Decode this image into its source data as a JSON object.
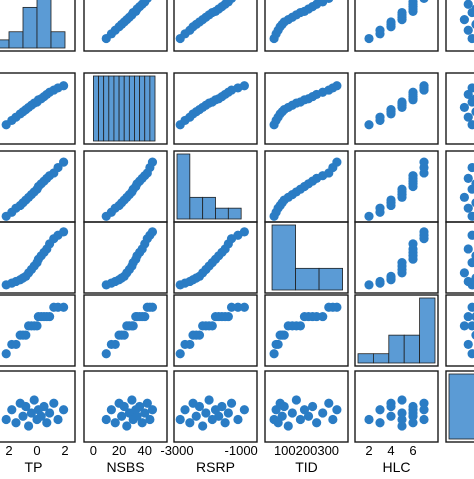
{
  "chart_data": {
    "type": "scatter",
    "subtype": "scatter-matrix",
    "variables": [
      "TP",
      "NSBS",
      "RSRP",
      "TID",
      "HLC",
      ""
    ],
    "xlabels": [
      "TP",
      "NSBS",
      "RSRP",
      "TID",
      "HLC"
    ],
    "tick_labels": [
      [
        "2",
        "0",
        "2"
      ],
      [
        "0",
        "20",
        "40"
      ],
      [
        "-3000",
        "-1000"
      ],
      [
        "100200300"
      ],
      [
        "2",
        "4",
        "6"
      ]
    ],
    "tick_values": [
      [
        -2,
        0,
        2
      ],
      [
        0,
        20,
        40
      ],
      [
        -3000,
        -1000
      ],
      [
        100,
        200,
        300
      ],
      [
        2,
        4,
        6
      ]
    ],
    "axis_ranges": [
      [
        -3,
        2.5
      ],
      [
        -5,
        55
      ],
      [
        -3000,
        -600
      ],
      [
        -20,
        360
      ],
      [
        1,
        8
      ],
      [
        0,
        1
      ]
    ],
    "colors": {
      "marker": "#2a7cc4",
      "bar_fill": "#5b9bd5",
      "bar_edge": "#1f1f1f",
      "frame": "#1a1a1a"
    },
    "histograms": [
      {
        "variable": "TP",
        "bins": [
          -3,
          -2,
          -1,
          0,
          1,
          2
        ],
        "counts": [
          1,
          2,
          5,
          8,
          2
        ]
      },
      {
        "variable": "NSBS",
        "bins": [
          0,
          4,
          8,
          12,
          16,
          20,
          24,
          28,
          32,
          36,
          40,
          44,
          48
        ],
        "counts": [
          4,
          4,
          4,
          4,
          4,
          4,
          4,
          4,
          4,
          4,
          4,
          4
        ]
      },
      {
        "variable": "RSRP",
        "bins": [
          -3000,
          -2600,
          -2200,
          -1800,
          -1400,
          -1000,
          -600
        ],
        "counts": [
          6,
          2,
          2,
          1,
          1,
          0
        ]
      },
      {
        "variable": "TID",
        "bins": [
          0,
          116,
          232,
          348
        ],
        "counts": [
          6,
          2,
          2
        ]
      },
      {
        "variable": "HLC",
        "bins": [
          1,
          2.4,
          3.8,
          5.2,
          6.6,
          8
        ],
        "counts": [
          1,
          1,
          3,
          3,
          7
        ]
      },
      {
        "variable": "",
        "bins": [
          0,
          0.5,
          1
        ],
        "counts": [
          1,
          0
        ]
      }
    ],
    "points": {
      "TP": [
        -2.2,
        -1.8,
        -1.5,
        -1.2,
        -1.0,
        -0.8,
        -0.6,
        -0.4,
        -0.2,
        0.0,
        0.1,
        0.3,
        0.5,
        0.7,
        0.9,
        1.2,
        1.5,
        1.9
      ],
      "NSBS": [
        10,
        14,
        17,
        20,
        22,
        24,
        26,
        28,
        30,
        31,
        33,
        34,
        36,
        38,
        40,
        42,
        44,
        46
      ],
      "RSRP": [
        -2900,
        -2750,
        -2600,
        -2500,
        -2400,
        -2300,
        -2200,
        -2100,
        -2000,
        -1900,
        -1800,
        -1700,
        -1600,
        -1500,
        -1400,
        -1300,
        -1100,
        -900
      ],
      "TID": [
        10,
        20,
        30,
        40,
        50,
        60,
        80,
        100,
        120,
        140,
        160,
        180,
        200,
        220,
        250,
        280,
        300,
        320
      ],
      "HLC": [
        2,
        3,
        3,
        4,
        4,
        4,
        5,
        5,
        5,
        5,
        6,
        6,
        6,
        6,
        6,
        7,
        7,
        7
      ],
      "": [
        0.3,
        0.45,
        0.25,
        0.55,
        0.35,
        0.5,
        0.2,
        0.4,
        0.6,
        0.3,
        0.45,
        0.35,
        0.5,
        0.25,
        0.4,
        0.55,
        0.3,
        0.45
      ]
    }
  }
}
